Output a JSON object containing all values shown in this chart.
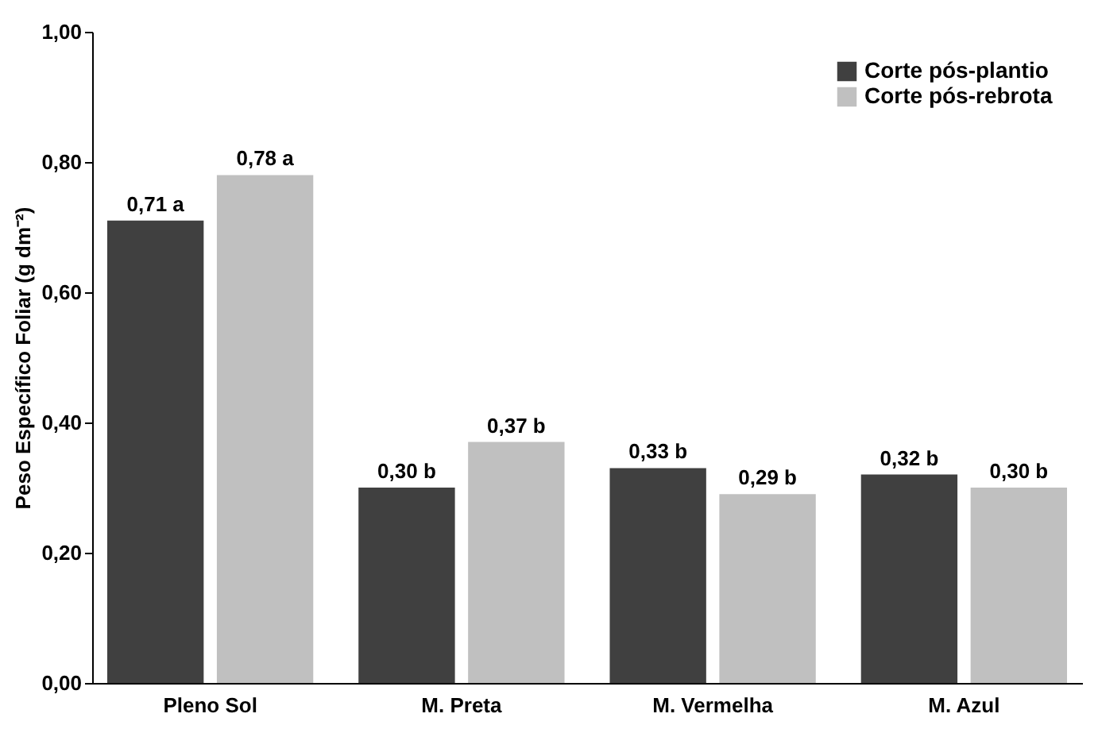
{
  "chart_data": {
    "type": "bar",
    "ylabel": "Peso Específico Foliar (g dm⁻²)",
    "categories": [
      "Pleno Sol",
      "M. Preta",
      "M. Vermelha",
      "M. Azul"
    ],
    "series": [
      {
        "name": "Corte pós-plantio",
        "color": "#404040",
        "values": [
          0.71,
          0.3,
          0.33,
          0.32
        ],
        "value_labels": [
          "0,71 a",
          "0,30 b",
          "0,33 b",
          "0,32 b"
        ]
      },
      {
        "name": "Corte pós-rebrota",
        "color": "#c0c0c0",
        "values": [
          0.78,
          0.37,
          0.29,
          0.3
        ],
        "value_labels": [
          "0,78 a",
          "0,37 b",
          "0,29 b",
          "0,30 b"
        ]
      }
    ],
    "ylim": [
      0,
      1
    ],
    "yticks": [
      {
        "value": 0,
        "label": "0,00"
      },
      {
        "value": 0.2,
        "label": "0,20"
      },
      {
        "value": 0.4,
        "label": "0,40"
      },
      {
        "value": 0.6,
        "label": "0,60"
      },
      {
        "value": 0.8,
        "label": "0,80"
      },
      {
        "value": 1,
        "label": "1,00"
      }
    ],
    "grid": false,
    "legend": "top right"
  }
}
